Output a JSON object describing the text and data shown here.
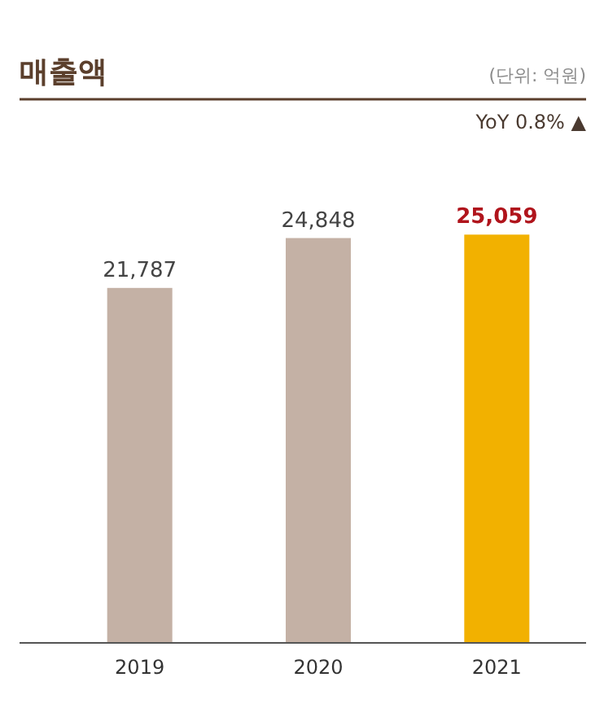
{
  "chart_data": {
    "type": "bar",
    "title": "매출액",
    "subtitle": "(단위: 억원)",
    "annotations": [
      "YoY 0.8% ▲"
    ],
    "categories": [
      "2019",
      "2020",
      "2021"
    ],
    "values": [
      21787,
      24848,
      25059
    ],
    "colors": [
      "#c4b1a5",
      "#c4b1a5",
      "#f2b100"
    ],
    "value_labels": [
      "21,787",
      "24,848",
      "25,059"
    ]
  }
}
